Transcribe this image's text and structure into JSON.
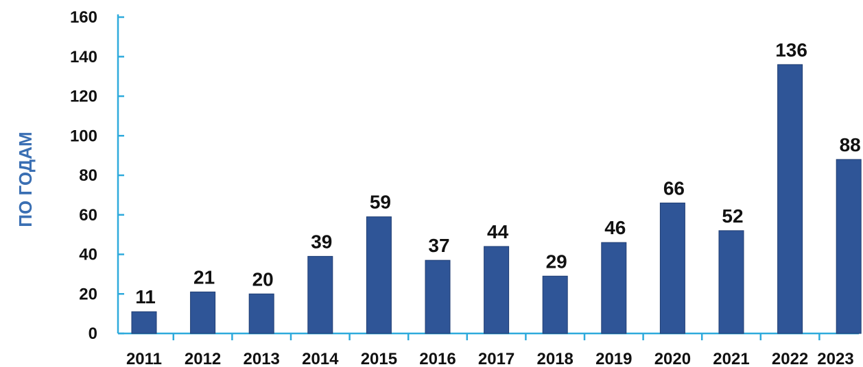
{
  "chart_data": {
    "type": "bar",
    "title": "",
    "xlabel": "",
    "ylabel": "ПО ГОДАМ",
    "categories": [
      "2011",
      "2012",
      "2013",
      "2014",
      "2015",
      "2016",
      "2017",
      "2018",
      "2019",
      "2020",
      "2021",
      "2022",
      "2023"
    ],
    "values": [
      11,
      21,
      20,
      39,
      59,
      37,
      44,
      29,
      46,
      66,
      52,
      136,
      88
    ],
    "ylim": [
      0,
      160
    ],
    "yticks": [
      0,
      20,
      40,
      60,
      80,
      100,
      120,
      140,
      160
    ],
    "grid": false,
    "legend": "none",
    "data_labels": true
  },
  "colors": {
    "bar": "#2f5597",
    "bar_edge": "#1f3d73",
    "axis": "#2eaadc",
    "ylabel": "#3a6fb3"
  }
}
